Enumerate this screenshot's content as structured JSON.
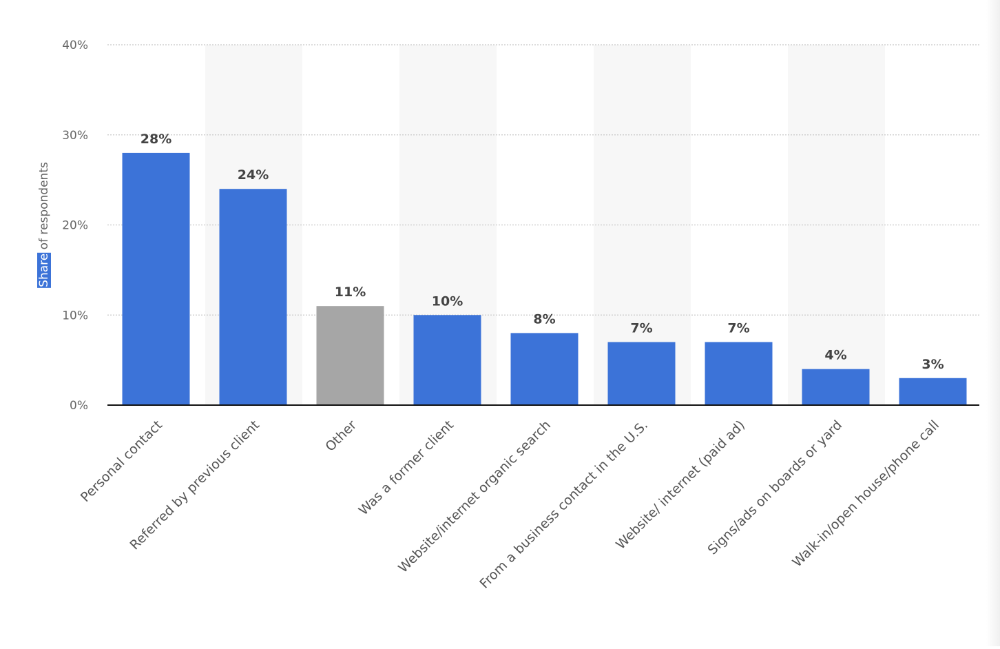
{
  "chart_data": {
    "type": "bar",
    "title": "",
    "ylabel": "Share of respondents",
    "ylabel_parts": {
      "highlighted": "Share",
      "rest": "of respondents"
    },
    "xlabel": "",
    "ylim": [
      0,
      40
    ],
    "yticks": [
      0,
      10,
      20,
      30,
      40
    ],
    "ytick_labels": [
      "0%",
      "10%",
      "20%",
      "30%",
      "40%"
    ],
    "grid": true,
    "categories": [
      "Personal contact",
      "Referred by previous client",
      "Other",
      "Was a former client",
      "Website/internet organic search",
      "From a business contact in the U.S.",
      "Website/ internet (paid ad)",
      "Signs/ads on boards or yard",
      "Walk-in/open house/phone call"
    ],
    "values": [
      28,
      24,
      11,
      10,
      8,
      7,
      7,
      4,
      3
    ],
    "value_labels": [
      "28%",
      "24%",
      "11%",
      "10%",
      "8%",
      "7%",
      "7%",
      "4%",
      "3%"
    ],
    "highlight_category": "Other",
    "colors": {
      "bar": "#3c73d8",
      "bar_highlight": "#a6a6a6",
      "band": "#f7f7f7",
      "grid": "#c8c8c8",
      "axis": "#111111",
      "tick_text": "#666666",
      "value_text": "#444444",
      "category_text": "#555555",
      "ylabel_highlight_bg": "#3c73d8"
    }
  }
}
